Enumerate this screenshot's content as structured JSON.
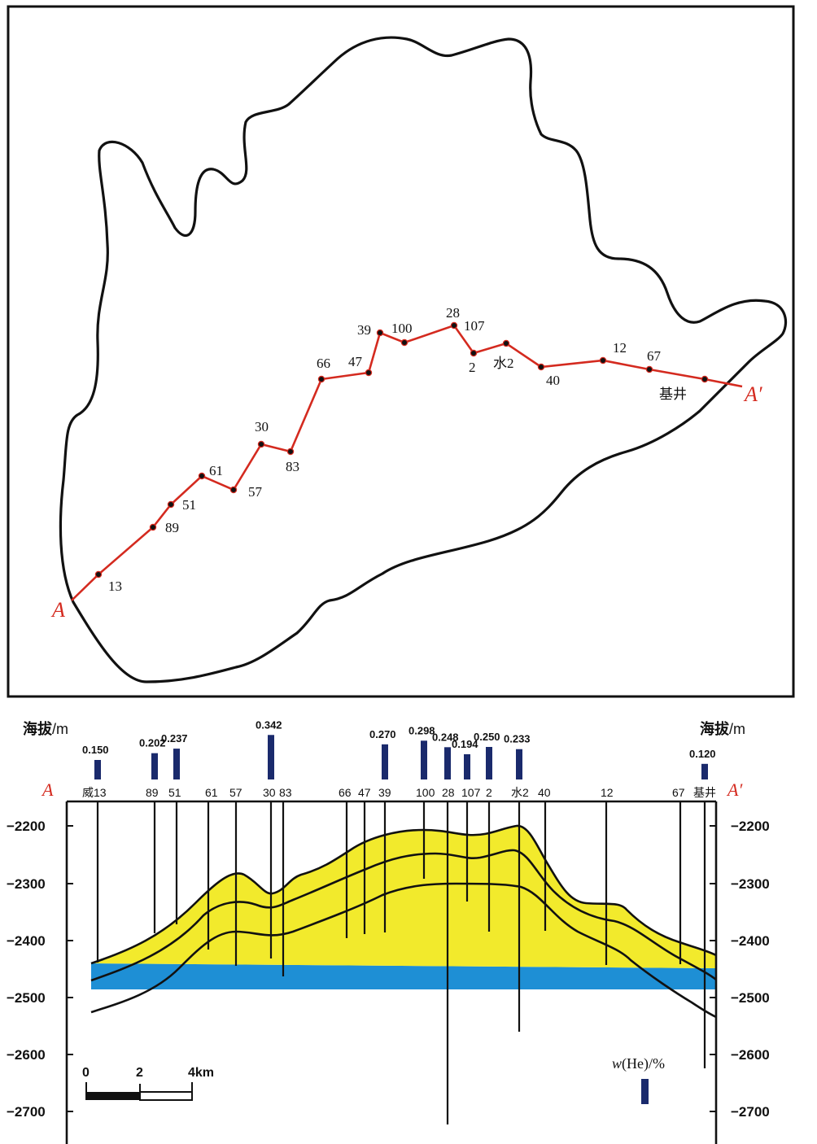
{
  "map": {
    "start_label": "A",
    "end_label": "A′",
    "points": [
      {
        "label": "13"
      },
      {
        "label": "89"
      },
      {
        "label": "51"
      },
      {
        "label": "61"
      },
      {
        "label": "57"
      },
      {
        "label": "30"
      },
      {
        "label": "83"
      },
      {
        "label": "66"
      },
      {
        "label": "47"
      },
      {
        "label": "39"
      },
      {
        "label": "100"
      },
      {
        "label": "28"
      },
      {
        "label": "107"
      },
      {
        "label": "2"
      },
      {
        "label": "水2"
      },
      {
        "label": "40"
      },
      {
        "label": "12"
      },
      {
        "label": "67"
      },
      {
        "label": "基井"
      }
    ]
  },
  "section": {
    "left_axis_title": "海拔",
    "left_axis_unit": "/m",
    "right_axis_title": "海拔",
    "right_axis_unit": "/m",
    "start_label": "A",
    "end_label": "A′",
    "elevation_ticks": [
      "−2200",
      "−2300",
      "−2400",
      "−2500",
      "−2600",
      "−2700"
    ],
    "wells": [
      {
        "name": "威13",
        "he": "0.150"
      },
      {
        "name": "89",
        "he": "0.202"
      },
      {
        "name": "51",
        "he": "0.237"
      },
      {
        "name": "61",
        "he": ""
      },
      {
        "name": "57",
        "he": ""
      },
      {
        "name": "30",
        "he": "0.342"
      },
      {
        "name": "83",
        "he": ""
      },
      {
        "name": "66",
        "he": ""
      },
      {
        "name": "47",
        "he": ""
      },
      {
        "name": "39",
        "he": "0.270"
      },
      {
        "name": "100",
        "he": "0.298"
      },
      {
        "name": "28",
        "he": "0.248"
      },
      {
        "name": "107",
        "he": "0.194"
      },
      {
        "name": "2",
        "he": "0.250"
      },
      {
        "name": "水2",
        "he": "0.233"
      },
      {
        "name": "40",
        "he": ""
      },
      {
        "name": "12",
        "he": ""
      },
      {
        "name": "67",
        "he": ""
      },
      {
        "name": "基井",
        "he": "0.120"
      }
    ],
    "scale_bar": {
      "labels": [
        "0",
        "2",
        "4km"
      ]
    },
    "legend": {
      "label_w": "w",
      "label_rest": "(He)/%"
    }
  },
  "colors": {
    "route": "#d42a1f",
    "yellow_layer": "#f2ea2c",
    "blue_layer": "#1e8fd5",
    "bar": "#1a2a6c",
    "outline": "#111111"
  }
}
